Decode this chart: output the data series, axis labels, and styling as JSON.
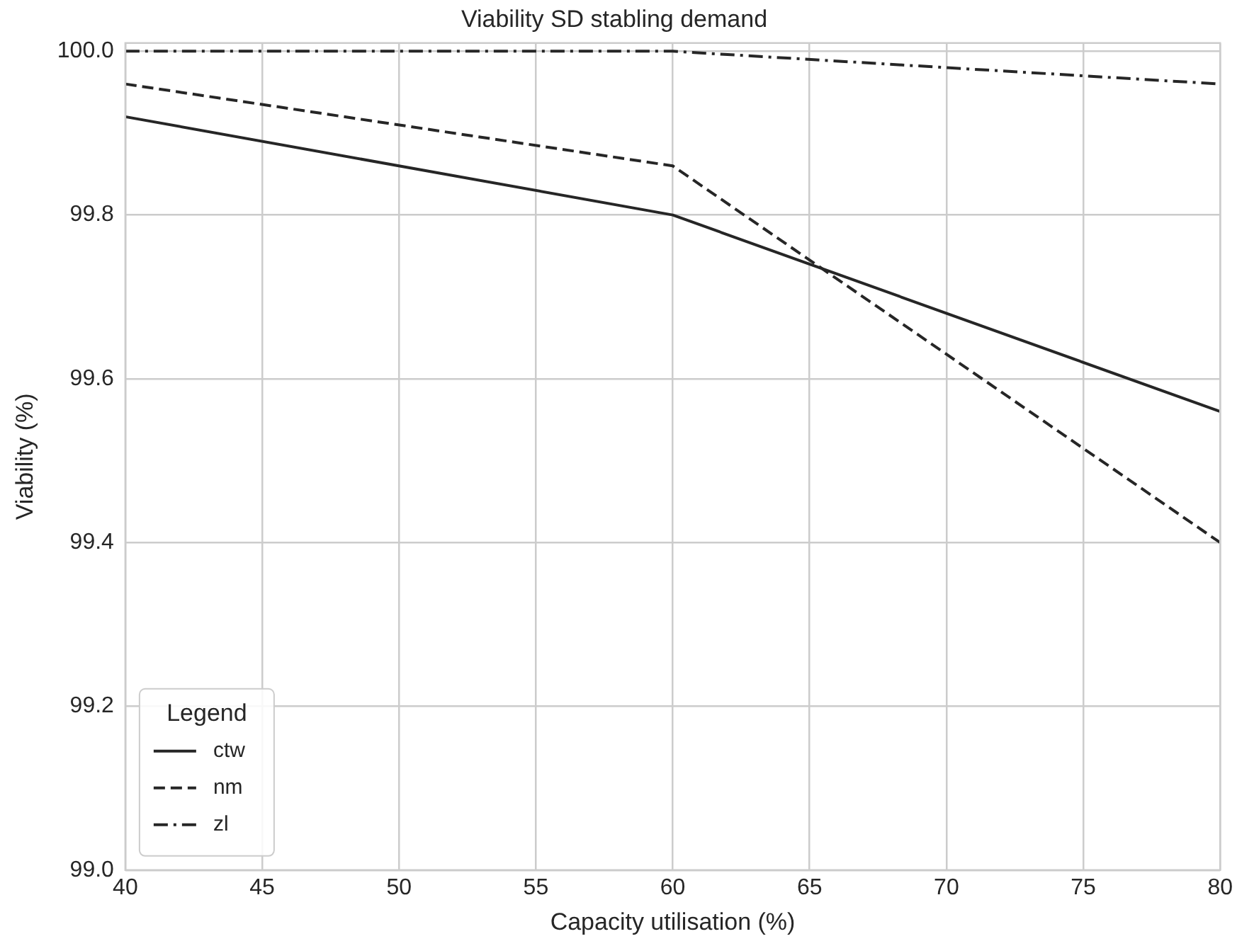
{
  "chart_data": {
    "type": "line",
    "title": "Viability SD stabling demand",
    "xlabel": "Capacity utilisation (%)",
    "ylabel": "Viability (%)",
    "legend_title": "Legend",
    "x": [
      40,
      60,
      80
    ],
    "series": [
      {
        "name": "ctw",
        "color": "#262626",
        "line_style": "solid",
        "values": [
          99.92,
          99.8,
          99.56
        ]
      },
      {
        "name": "nm",
        "color": "#262626",
        "line_style": "dashed",
        "values": [
          99.96,
          99.86,
          99.4
        ]
      },
      {
        "name": "zl",
        "color": "#262626",
        "line_style": "dashdot",
        "values": [
          100.0,
          100.0,
          99.96
        ]
      }
    ],
    "xlim": [
      40,
      80
    ],
    "xticks": [
      40,
      45,
      50,
      55,
      60,
      65,
      70,
      75,
      80
    ],
    "ylim": [
      99.0,
      100.01
    ],
    "yticks": [
      {
        "value": 99.0,
        "label": "99.0"
      },
      {
        "value": 99.2,
        "label": "99.2"
      },
      {
        "value": 99.4,
        "label": "99.4"
      },
      {
        "value": 99.6,
        "label": "99.6"
      },
      {
        "value": 99.8,
        "label": "99.8"
      },
      {
        "value": 100.0,
        "label": "100.0"
      }
    ],
    "grid": true,
    "legend": "bottom left",
    "marker": "none"
  }
}
